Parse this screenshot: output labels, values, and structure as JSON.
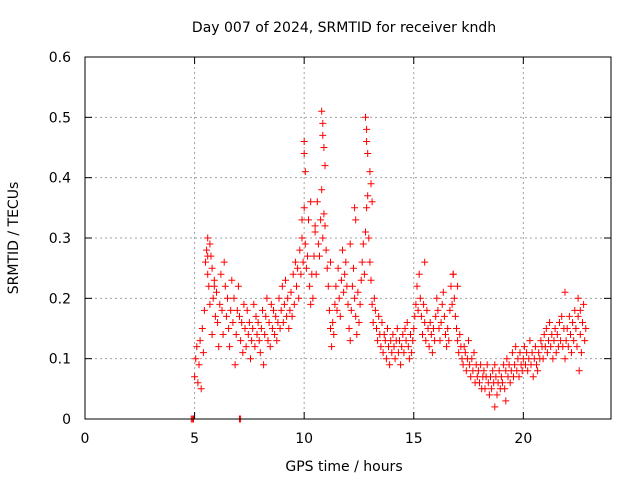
{
  "chart_data": {
    "type": "scatter",
    "title": "Day 007 of 2024, SRMTID for receiver kndh",
    "xlabel": "GPS time / hours",
    "ylabel": "SRMTID / TECUs",
    "xlim": [
      0,
      24
    ],
    "ylim": [
      0,
      0.6
    ],
    "xticks": [
      0,
      5,
      10,
      15,
      20
    ],
    "xtick_labels": [
      "0",
      "5",
      "10",
      "15",
      "20"
    ],
    "yticks": [
      0,
      0.1,
      0.2,
      0.3,
      0.4,
      0.5,
      0.6
    ],
    "ytick_labels": [
      "0",
      "0.1",
      "0.2",
      "0.3",
      "0.4",
      "0.5",
      "0.6"
    ],
    "grid": true,
    "marker": "+",
    "color": "#ff0000",
    "series": [
      {
        "name": "SRMTID",
        "x": [
          4.85,
          4.9,
          4.95,
          7.05,
          7.1,
          5.0,
          5.05,
          5.1,
          5.15,
          5.2,
          5.25,
          5.3,
          5.35,
          5.4,
          5.45,
          5.5,
          5.55,
          5.6,
          5.65,
          5.7,
          5.75,
          5.8,
          5.85,
          5.9,
          5.95,
          6.0,
          6.05,
          6.1,
          6.15,
          6.2,
          6.25,
          6.3,
          6.35,
          6.4,
          6.45,
          6.5,
          6.55,
          6.6,
          6.65,
          6.7,
          6.75,
          6.8,
          6.85,
          6.9,
          6.95,
          7.0,
          7.05,
          7.1,
          7.15,
          7.2,
          7.25,
          7.3,
          7.35,
          7.4,
          7.45,
          7.5,
          7.55,
          7.6,
          7.65,
          7.7,
          7.75,
          7.8,
          7.85,
          7.9,
          7.95,
          8.0,
          8.05,
          8.1,
          8.15,
          8.2,
          8.25,
          8.3,
          8.35,
          8.4,
          8.45,
          8.5,
          8.55,
          8.6,
          8.65,
          8.7,
          8.75,
          8.8,
          8.85,
          8.9,
          8.95,
          9.0,
          9.05,
          9.1,
          9.15,
          9.2,
          9.25,
          9.3,
          9.35,
          9.4,
          9.45,
          9.5,
          9.55,
          9.6,
          9.65,
          9.7,
          9.75,
          9.8,
          9.85,
          9.9,
          9.95,
          10.0,
          10.05,
          10.1,
          10.15,
          10.2,
          10.25,
          10.3,
          10.35,
          10.4,
          10.45,
          10.5,
          10.55,
          10.6,
          10.65,
          10.7,
          10.75,
          10.8,
          10.85,
          10.9,
          10.95,
          11.0,
          11.05,
          11.1,
          11.15,
          11.2,
          11.25,
          11.3,
          11.35,
          11.4,
          11.45,
          11.5,
          11.55,
          11.6,
          11.65,
          11.7,
          11.75,
          11.8,
          11.85,
          11.9,
          11.95,
          12.0,
          12.05,
          12.1,
          12.15,
          12.2,
          12.25,
          12.3,
          12.35,
          12.4,
          12.45,
          12.5,
          12.55,
          12.6,
          12.65,
          12.7,
          12.75,
          12.8,
          12.85,
          12.9,
          12.95,
          13.0,
          13.05,
          13.1,
          13.15,
          13.2,
          13.25,
          13.3,
          13.35,
          13.4,
          13.45,
          13.5,
          13.55,
          13.6,
          13.65,
          13.7,
          13.75,
          13.8,
          13.85,
          13.9,
          13.95,
          14.0,
          14.05,
          14.1,
          14.15,
          14.2,
          14.25,
          14.3,
          14.35,
          14.4,
          14.45,
          14.5,
          14.55,
          14.6,
          14.65,
          14.7,
          14.75,
          14.8,
          14.85,
          14.9,
          14.95,
          15.0,
          15.05,
          15.1,
          15.15,
          15.2,
          15.25,
          15.3,
          15.35,
          15.4,
          15.45,
          15.5,
          15.55,
          15.6,
          15.65,
          15.7,
          15.75,
          15.8,
          15.85,
          15.9,
          15.95,
          16.0,
          16.05,
          16.1,
          16.15,
          16.2,
          16.25,
          16.3,
          16.35,
          16.4,
          16.45,
          16.5,
          16.55,
          16.6,
          16.65,
          16.7,
          16.75,
          16.8,
          16.85,
          16.9,
          16.95,
          17.0,
          17.05,
          17.1,
          17.15,
          17.2,
          17.25,
          17.3,
          17.35,
          17.4,
          17.45,
          17.5,
          17.55,
          17.6,
          17.65,
          17.7,
          17.75,
          17.8,
          17.85,
          17.9,
          17.95,
          18.0,
          18.05,
          18.1,
          18.15,
          18.2,
          18.25,
          18.3,
          18.35,
          18.4,
          18.45,
          18.5,
          18.55,
          18.6,
          18.65,
          18.7,
          18.75,
          18.8,
          18.85,
          18.9,
          18.95,
          19.0,
          19.05,
          19.1,
          19.15,
          19.2,
          19.25,
          19.3,
          19.35,
          19.4,
          19.45,
          19.5,
          19.55,
          19.6,
          19.65,
          19.7,
          19.75,
          19.8,
          19.85,
          19.9,
          19.95,
          20.0,
          20.05,
          20.1,
          20.15,
          20.2,
          20.25,
          20.3,
          20.35,
          20.4,
          20.45,
          20.5,
          20.55,
          20.6,
          20.65,
          20.7,
          20.75,
          20.8,
          20.85,
          20.9,
          20.95,
          21.0,
          21.05,
          21.1,
          21.15,
          21.2,
          21.25,
          21.3,
          21.35,
          21.4,
          21.45,
          21.5,
          21.55,
          21.6,
          21.65,
          21.7,
          21.75,
          21.8,
          21.85,
          21.9,
          21.95,
          22.0,
          22.05,
          22.1,
          22.15,
          22.2,
          22.25,
          22.3,
          22.35,
          22.4,
          22.45,
          22.5,
          22.55,
          22.6,
          22.65,
          22.7,
          22.75,
          22.8,
          22.85,
          5.6,
          5.6,
          5.7,
          5.8,
          5.9,
          10.0,
          10.0,
          10.05,
          10.8,
          10.85,
          10.85,
          10.9,
          10.95,
          12.8,
          12.85,
          12.85,
          12.9,
          13.0,
          13.05,
          13.1,
          9.9,
          10.3,
          10.5,
          11.2,
          12.1,
          12.3,
          12.35,
          16.8,
          17.0,
          15.5,
          22.5,
          22.6,
          21.9,
          19.2,
          18.7
        ],
        "y": [
          0.0,
          0.0,
          0.0,
          0.0,
          0.0,
          0.07,
          0.1,
          0.12,
          0.06,
          0.09,
          0.13,
          0.05,
          0.15,
          0.11,
          0.18,
          0.26,
          0.28,
          0.24,
          0.22,
          0.19,
          0.27,
          0.14,
          0.2,
          0.23,
          0.17,
          0.21,
          0.16,
          0.12,
          0.19,
          0.24,
          0.18,
          0.14,
          0.26,
          0.22,
          0.17,
          0.2,
          0.15,
          0.12,
          0.18,
          0.23,
          0.16,
          0.2,
          0.09,
          0.14,
          0.18,
          0.22,
          0.17,
          0.13,
          0.16,
          0.11,
          0.19,
          0.15,
          0.12,
          0.18,
          0.14,
          0.16,
          0.1,
          0.13,
          0.15,
          0.19,
          0.12,
          0.17,
          0.14,
          0.16,
          0.13,
          0.11,
          0.15,
          0.18,
          0.09,
          0.14,
          0.17,
          0.2,
          0.13,
          0.16,
          0.12,
          0.19,
          0.15,
          0.18,
          0.14,
          0.17,
          0.13,
          0.16,
          0.2,
          0.15,
          0.18,
          0.22,
          0.16,
          0.19,
          0.23,
          0.17,
          0.2,
          0.15,
          0.18,
          0.21,
          0.17,
          0.24,
          0.19,
          0.26,
          0.22,
          0.25,
          0.2,
          0.28,
          0.24,
          0.3,
          0.26,
          0.35,
          0.29,
          0.25,
          0.27,
          0.33,
          0.22,
          0.19,
          0.24,
          0.2,
          0.27,
          0.31,
          0.24,
          0.36,
          0.29,
          0.27,
          0.33,
          0.38,
          0.3,
          0.34,
          0.32,
          0.28,
          0.25,
          0.22,
          0.18,
          0.15,
          0.12,
          0.16,
          0.14,
          0.19,
          0.22,
          0.18,
          0.25,
          0.2,
          0.17,
          0.23,
          0.28,
          0.21,
          0.24,
          0.26,
          0.22,
          0.19,
          0.15,
          0.13,
          0.18,
          0.22,
          0.25,
          0.2,
          0.17,
          0.14,
          0.21,
          0.16,
          0.19,
          0.23,
          0.26,
          0.29,
          0.24,
          0.31,
          0.35,
          0.37,
          0.3,
          0.26,
          0.23,
          0.19,
          0.16,
          0.2,
          0.18,
          0.15,
          0.13,
          0.17,
          0.14,
          0.12,
          0.16,
          0.11,
          0.14,
          0.13,
          0.1,
          0.15,
          0.12,
          0.09,
          0.13,
          0.11,
          0.14,
          0.12,
          0.1,
          0.13,
          0.15,
          0.11,
          0.13,
          0.09,
          0.12,
          0.14,
          0.11,
          0.15,
          0.13,
          0.16,
          0.12,
          0.1,
          0.14,
          0.11,
          0.13,
          0.15,
          0.17,
          0.19,
          0.22,
          0.18,
          0.24,
          0.2,
          0.17,
          0.14,
          0.19,
          0.16,
          0.13,
          0.18,
          0.15,
          0.12,
          0.16,
          0.14,
          0.11,
          0.15,
          0.13,
          0.17,
          0.2,
          0.18,
          0.15,
          0.13,
          0.16,
          0.19,
          0.21,
          0.17,
          0.14,
          0.12,
          0.15,
          0.13,
          0.18,
          0.22,
          0.19,
          0.24,
          0.2,
          0.17,
          0.15,
          0.13,
          0.11,
          0.14,
          0.12,
          0.1,
          0.09,
          0.12,
          0.11,
          0.08,
          0.1,
          0.13,
          0.09,
          0.07,
          0.1,
          0.08,
          0.11,
          0.06,
          0.09,
          0.07,
          0.08,
          0.06,
          0.09,
          0.05,
          0.07,
          0.08,
          0.05,
          0.07,
          0.09,
          0.06,
          0.04,
          0.07,
          0.05,
          0.08,
          0.06,
          0.09,
          0.07,
          0.04,
          0.06,
          0.08,
          0.05,
          0.07,
          0.06,
          0.09,
          0.05,
          0.08,
          0.1,
          0.07,
          0.09,
          0.06,
          0.08,
          0.11,
          0.07,
          0.09,
          0.12,
          0.08,
          0.1,
          0.07,
          0.11,
          0.09,
          0.08,
          0.1,
          0.12,
          0.09,
          0.11,
          0.08,
          0.1,
          0.13,
          0.09,
          0.11,
          0.07,
          0.1,
          0.12,
          0.09,
          0.08,
          0.11,
          0.1,
          0.13,
          0.12,
          0.1,
          0.14,
          0.12,
          0.15,
          0.11,
          0.13,
          0.16,
          0.12,
          0.14,
          0.1,
          0.13,
          0.15,
          0.11,
          0.14,
          0.12,
          0.16,
          0.13,
          0.17,
          0.12,
          0.15,
          0.1,
          0.13,
          0.15,
          0.12,
          0.17,
          0.14,
          0.11,
          0.16,
          0.13,
          0.18,
          0.15,
          0.12,
          0.17,
          0.08,
          0.14,
          0.11,
          0.16,
          0.19,
          0.13,
          0.15,
          0.3,
          0.27,
          0.29,
          0.25,
          0.22,
          0.46,
          0.44,
          0.41,
          0.51,
          0.49,
          0.47,
          0.45,
          0.42,
          0.5,
          0.48,
          0.46,
          0.44,
          0.41,
          0.39,
          0.36,
          0.33,
          0.36,
          0.32,
          0.26,
          0.29,
          0.35,
          0.33,
          0.24,
          0.22,
          0.26,
          0.2,
          0.18,
          0.21,
          0.03,
          0.02
        ]
      }
    ]
  }
}
